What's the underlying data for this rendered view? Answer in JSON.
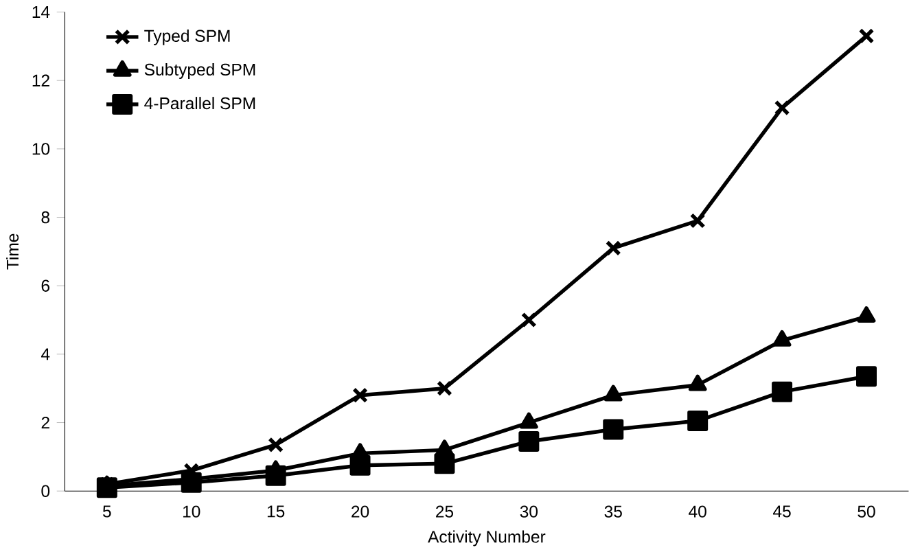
{
  "chart_data": {
    "type": "line",
    "xlabel": "Activity Number",
    "ylabel": "Time",
    "categories": [
      "5",
      "10",
      "15",
      "20",
      "25",
      "30",
      "35",
      "40",
      "45",
      "50"
    ],
    "series": [
      {
        "name": "Typed SPM",
        "color": "#000000",
        "marker": "cross",
        "values": [
          0.2,
          0.6,
          1.35,
          2.8,
          3.0,
          5.0,
          7.1,
          7.9,
          11.2,
          13.3
        ]
      },
      {
        "name": "Subtyped SPM",
        "color": "#000000",
        "marker": "triangle",
        "values": [
          0.15,
          0.35,
          0.6,
          1.1,
          1.2,
          2.0,
          2.8,
          3.1,
          4.4,
          5.1
        ]
      },
      {
        "name": "4-Parallel SPM",
        "color": "#000000",
        "marker": "square",
        "values": [
          0.1,
          0.25,
          0.45,
          0.75,
          0.8,
          1.45,
          1.8,
          2.05,
          2.9,
          3.35
        ]
      }
    ],
    "ylim": [
      0,
      14
    ],
    "yticks": [
      0,
      2,
      4,
      6,
      8,
      10,
      12,
      14
    ],
    "grid": false,
    "legend": "top left",
    "line_style": "solid"
  }
}
